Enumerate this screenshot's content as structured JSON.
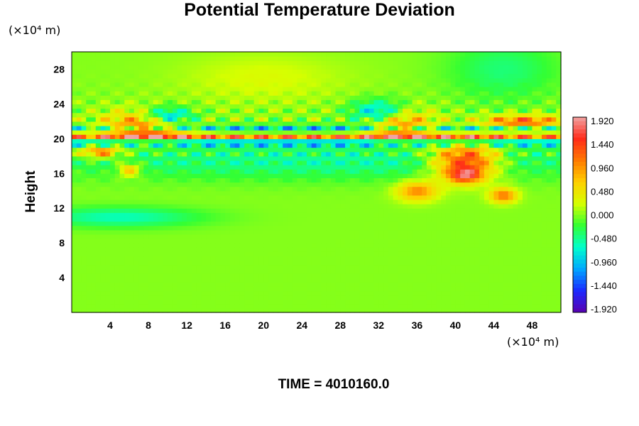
{
  "chart_data": {
    "type": "heatmap",
    "title": "Potential Temperature Deviation",
    "ylabel": "Height",
    "yunit": "(×10⁴ m)",
    "xunit": "(×10⁴ m)",
    "xlim": [
      0,
      51
    ],
    "ylim": [
      0,
      30
    ],
    "x_ticks": [
      "4",
      "8",
      "12",
      "16",
      "20",
      "24",
      "28",
      "32",
      "36",
      "40",
      "44",
      "48"
    ],
    "x_tick_values": [
      4,
      8,
      12,
      16,
      20,
      24,
      28,
      32,
      36,
      40,
      44,
      48
    ],
    "y_ticks": [
      "4",
      "8",
      "12",
      "16",
      "20",
      "24",
      "28"
    ],
    "y_tick_values": [
      4,
      8,
      12,
      16,
      20,
      24,
      28
    ],
    "colorbar": {
      "range": [
        -1.92,
        1.92
      ],
      "ticks": [
        "1.920",
        "1.440",
        "0.960",
        "0.480",
        "0.000",
        "-0.480",
        "-0.960",
        "-1.440",
        "-1.920"
      ],
      "tick_values": [
        1.92,
        1.44,
        0.96,
        0.48,
        0.0,
        -0.48,
        -0.96,
        -1.44,
        -1.92
      ],
      "color_stops": [
        "#f1a3a3",
        "#ff2a1a",
        "#ff7a00",
        "#ffcf00",
        "#d6ff00",
        "#33ff33",
        "#00ffcc",
        "#00a8ff",
        "#1b2aff",
        "#5a00b0"
      ]
    },
    "features": [
      {
        "x": 25,
        "y": 20.2,
        "sx": 45,
        "sy": 0.5,
        "v": 1.9
      },
      {
        "x": 25,
        "y": 19.7,
        "sx": 45,
        "sy": 0.35,
        "v": -1.9
      },
      {
        "x": 25,
        "y": 21.0,
        "sx": 30,
        "sy": 0.35,
        "v": -1.3
      },
      {
        "x": 8,
        "y": 21.5,
        "sx": 3,
        "sy": 1.2,
        "v": 1.4
      },
      {
        "x": 10,
        "y": 22.5,
        "sx": 2,
        "sy": 0.8,
        "v": -1.4
      },
      {
        "x": 34,
        "y": 21.5,
        "sx": 2.5,
        "sy": 1.3,
        "v": 1.2
      },
      {
        "x": 32,
        "y": 23.0,
        "sx": 2,
        "sy": 1.0,
        "v": -1.1
      },
      {
        "x": 41,
        "y": 17.5,
        "sx": 2.5,
        "sy": 1.5,
        "v": 1.7
      },
      {
        "x": 41,
        "y": 15.8,
        "sx": 1.2,
        "sy": 0.6,
        "v": 1.2
      },
      {
        "x": 36,
        "y": 14.0,
        "sx": 1.5,
        "sy": 0.8,
        "v": 1.0
      },
      {
        "x": 45,
        "y": 13.5,
        "sx": 1.0,
        "sy": 0.6,
        "v": 1.1
      },
      {
        "x": 3,
        "y": 18.5,
        "sx": 1.5,
        "sy": 0.5,
        "v": 1.2
      },
      {
        "x": 6,
        "y": 16.5,
        "sx": 0.8,
        "sy": 0.6,
        "v": 0.9
      },
      {
        "x": 47,
        "y": 22.0,
        "sx": 3,
        "sy": 0.5,
        "v": 1.3
      },
      {
        "x": 28,
        "y": 17.5,
        "sx": 25,
        "sy": 1.5,
        "v": -0.5
      },
      {
        "x": 5,
        "y": 11.0,
        "sx": 6,
        "sy": 0.8,
        "v": -0.6
      },
      {
        "x": 45,
        "y": 28.0,
        "sx": 4,
        "sy": 2.5,
        "v": -0.4
      },
      {
        "x": 20,
        "y": 27.0,
        "sx": 6,
        "sy": 2.0,
        "v": 0.25
      }
    ]
  },
  "footer": {
    "time_label": "TIME = 4010160.0"
  }
}
